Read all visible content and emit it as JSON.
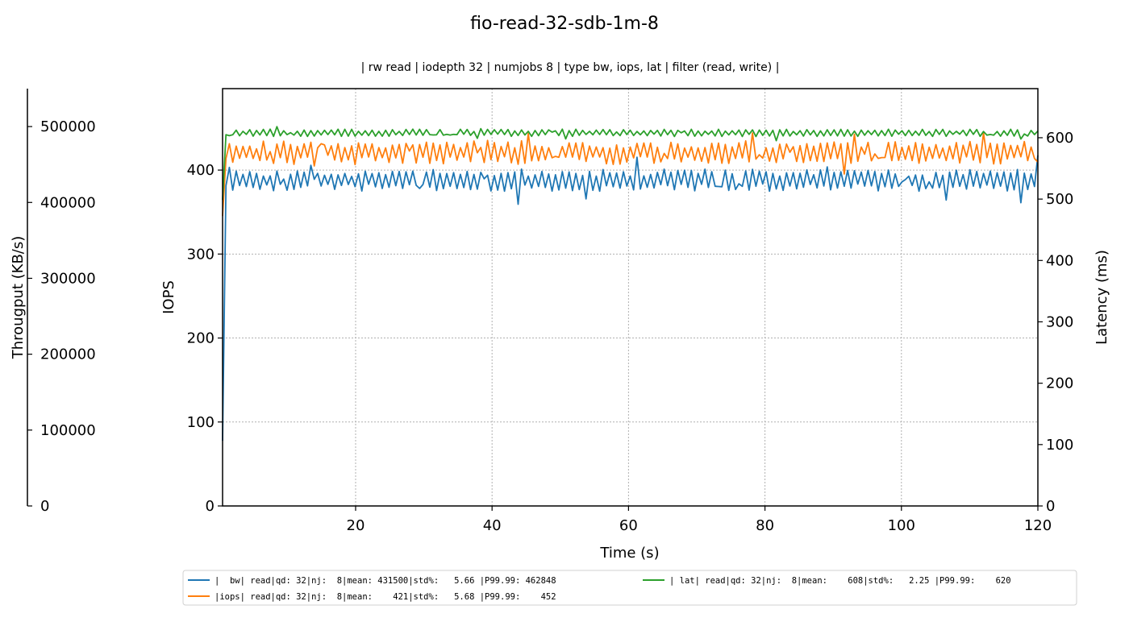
{
  "chart_data": {
    "type": "line",
    "title": "fio-read-32-sdb-1m-8",
    "subtitle": "| rw read | iodepth 32 | numjobs 8 | type bw, iops, lat | filter (read, write) |",
    "xlabel": "Time (s)",
    "ylabel_left_iops": "IOPS",
    "ylabel_left_bw": "Througput (KB/s)",
    "ylabel_right": "Latency (ms)",
    "xlim": [
      0.5,
      120
    ],
    "ylim_iops": [
      0,
      497
    ],
    "ylim_bw": [
      0,
      550000
    ],
    "ylim_lat": [
      0,
      680
    ],
    "xticks": [
      20,
      40,
      60,
      80,
      100,
      120
    ],
    "yticks_iops": [
      0,
      100,
      200,
      300,
      400
    ],
    "yticks_bw": [
      0,
      100000,
      200000,
      300000,
      400000,
      500000
    ],
    "yticks_lat": [
      0,
      100,
      200,
      300,
      400,
      500,
      600
    ],
    "grid": true,
    "legend_position": "bottom",
    "series": [
      {
        "name": "|  bw| read|qd: 32|nj:  8|mean: 431500|std%:   5.66 |P99.99: 462848",
        "axis": "bw",
        "color": "#1f77b4",
        "base": 388,
        "amp": 22,
        "seed": 11
      },
      {
        "name": "|iops| read|qd: 32|nj:  8|mean:    421|std%:   5.68 |P99.99:    452",
        "axis": "iops",
        "color": "#ff7f0e",
        "base": 421,
        "amp": 24,
        "seed": 23
      },
      {
        "name": "| lat| read|qd: 32|nj:  8|mean:    608|std%:   2.25 |P99.99:    620",
        "axis": "lat",
        "color": "#2ca02c",
        "base": 608,
        "amp": 10,
        "seed": 37
      }
    ]
  }
}
